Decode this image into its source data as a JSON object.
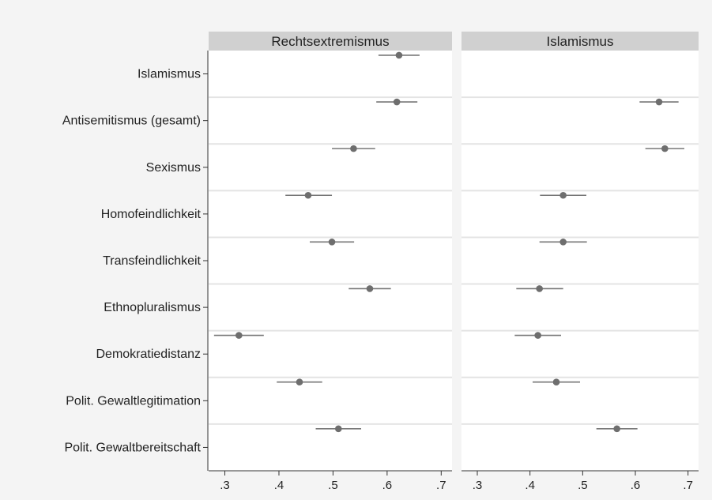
{
  "chart_data": {
    "type": "scatter",
    "subtype": "dot-with-error-bars",
    "rows": [
      "Islamismus",
      "Antisemitismus (gesamt)",
      "Sexismus",
      "Homofeindlichkeit",
      "Transfeindlichkeit",
      "Ethnopluralismus",
      "Demokratiedistanz",
      "Polit. Gewaltlegitimation",
      "Polit. Gewaltbereitschaft"
    ],
    "xlim": [
      0.27,
      0.72
    ],
    "x_ticks": [
      0.3,
      0.4,
      0.5,
      0.6,
      0.7
    ],
    "x_tick_labels": [
      ".3",
      ".4",
      ".5",
      ".6",
      ".7"
    ],
    "grid": "horizontal row separators",
    "panels": [
      {
        "title": "Rechtsextremismus",
        "points": [
          {
            "estimate": 0.622,
            "lower": 0.584,
            "upper": 0.66
          },
          {
            "estimate": 0.618,
            "lower": 0.58,
            "upper": 0.656
          },
          {
            "estimate": 0.538,
            "lower": 0.498,
            "upper": 0.578
          },
          {
            "estimate": 0.454,
            "lower": 0.412,
            "upper": 0.498
          },
          {
            "estimate": 0.498,
            "lower": 0.457,
            "upper": 0.539
          },
          {
            "estimate": 0.568,
            "lower": 0.529,
            "upper": 0.607
          },
          {
            "estimate": 0.326,
            "lower": 0.28,
            "upper": 0.372
          },
          {
            "estimate": 0.438,
            "lower": 0.396,
            "upper": 0.48
          },
          {
            "estimate": 0.51,
            "lower": 0.468,
            "upper": 0.552
          }
        ]
      },
      {
        "title": "Islamismus",
        "points": [
          null,
          {
            "estimate": 0.645,
            "lower": 0.608,
            "upper": 0.682
          },
          {
            "estimate": 0.656,
            "lower": 0.619,
            "upper": 0.693
          },
          {
            "estimate": 0.463,
            "lower": 0.419,
            "upper": 0.507
          },
          {
            "estimate": 0.463,
            "lower": 0.418,
            "upper": 0.508
          },
          {
            "estimate": 0.418,
            "lower": 0.374,
            "upper": 0.463
          },
          {
            "estimate": 0.415,
            "lower": 0.371,
            "upper": 0.459
          },
          {
            "estimate": 0.45,
            "lower": 0.405,
            "upper": 0.495
          },
          {
            "estimate": 0.565,
            "lower": 0.526,
            "upper": 0.604
          }
        ]
      }
    ],
    "colors": {
      "point": "#6e6e6e",
      "error_bar": "#777777",
      "strip_background": "#d0d0d0",
      "panel_background": "#ffffff",
      "page_background": "#f4f4f4",
      "row_separator": "#e4e4e4"
    }
  }
}
